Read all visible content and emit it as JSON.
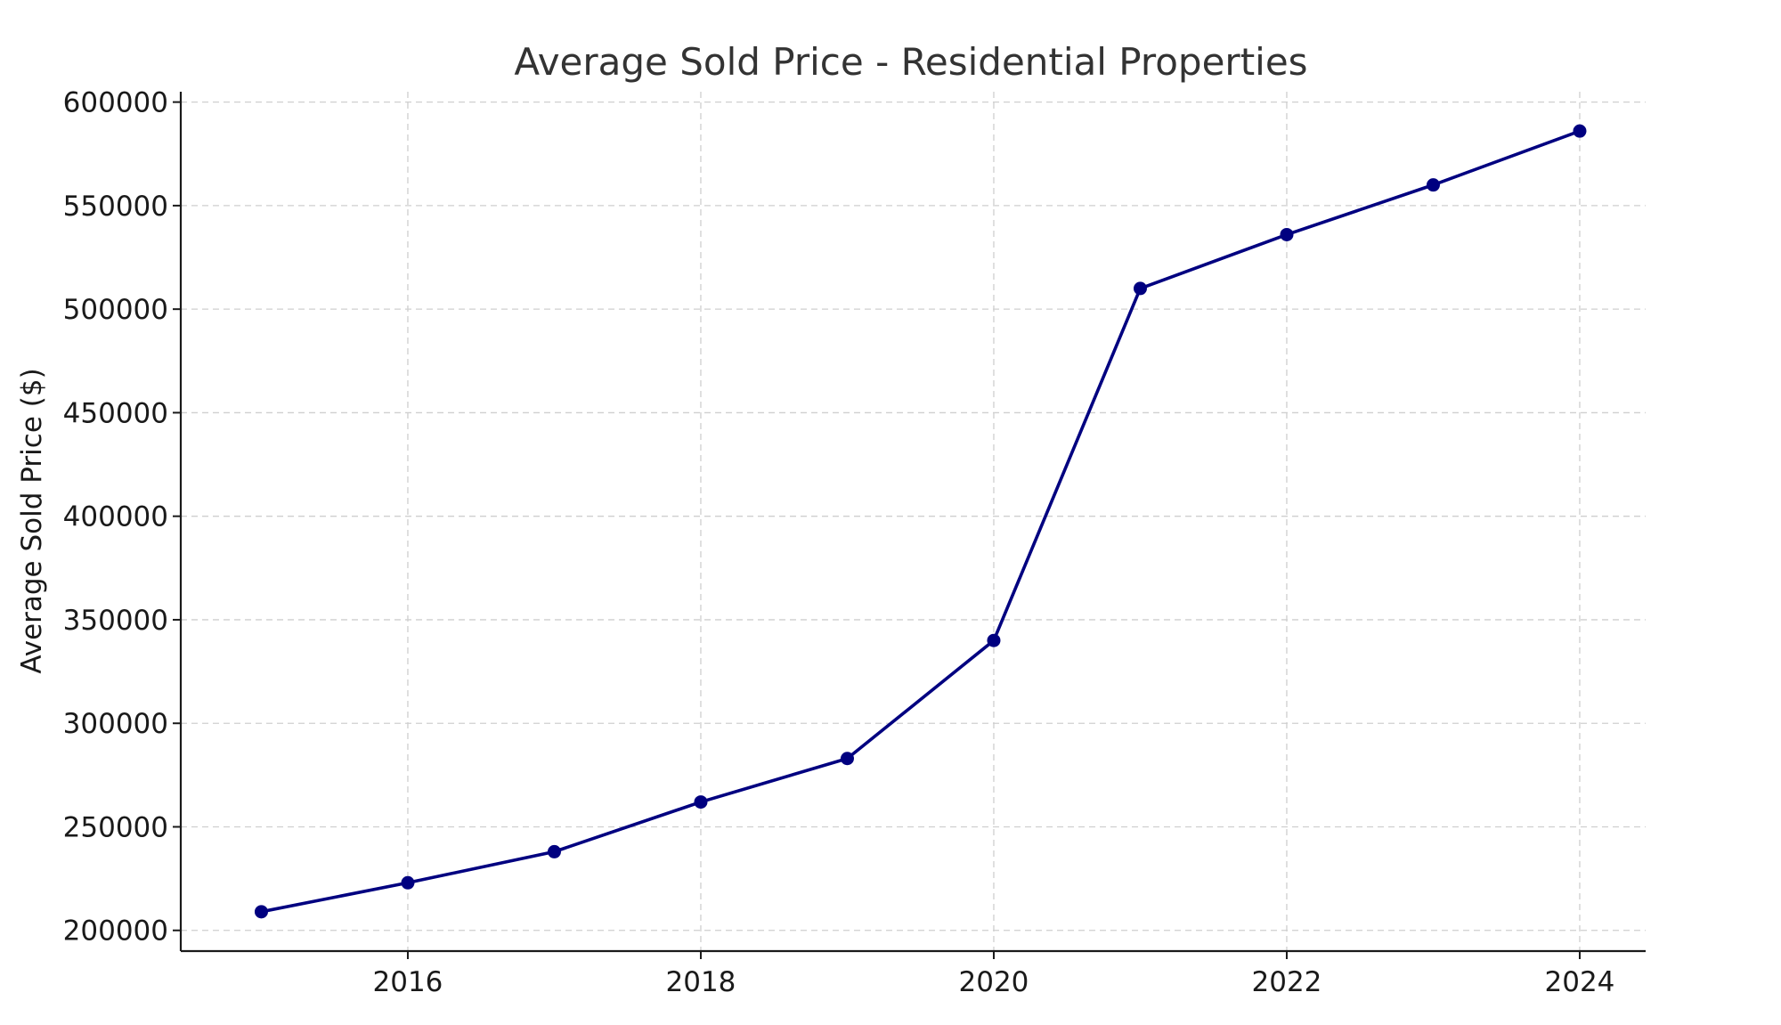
{
  "chart_data": {
    "type": "line",
    "title": "Average Sold Price - Residential Properties",
    "xlabel": "",
    "ylabel": "Average Sold Price ($)",
    "x": [
      2015,
      2016,
      2017,
      2018,
      2019,
      2020,
      2021,
      2022,
      2023,
      2024
    ],
    "series": [
      {
        "values": [
          209000,
          223000,
          238000,
          262000,
          283000,
          340000,
          510000,
          536000,
          560000,
          586000
        ],
        "color": "#000080",
        "marker": "circle"
      }
    ],
    "xticks": [
      "2016",
      "2018",
      "2020",
      "2022",
      "2024"
    ],
    "yticks": [
      "200000",
      "250000",
      "300000",
      "350000",
      "400000",
      "450000",
      "500000",
      "550000",
      "600000"
    ],
    "xlim": [
      2014.45,
      2024.45
    ],
    "ylim": [
      190000,
      605000
    ],
    "grid": true
  }
}
